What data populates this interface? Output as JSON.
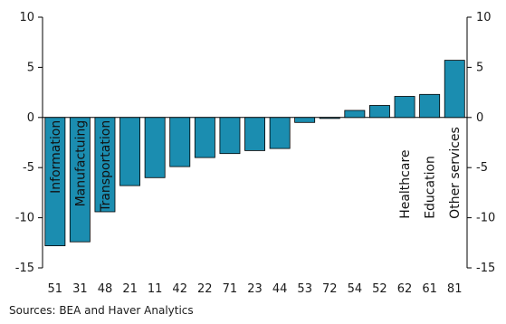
{
  "chart_data": {
    "type": "bar",
    "categories": [
      "51",
      "31",
      "48",
      "21",
      "11",
      "42",
      "22",
      "71",
      "23",
      "44",
      "53",
      "72",
      "54",
      "52",
      "62",
      "61",
      "81"
    ],
    "values": [
      -12.8,
      -12.4,
      -9.4,
      -6.8,
      -6.0,
      -4.9,
      -4.0,
      -3.6,
      -3.3,
      -3.1,
      -0.5,
      -0.1,
      0.7,
      1.2,
      2.1,
      2.3,
      5.7
    ],
    "bar_annotations": [
      "Information",
      "Manufactuing",
      "Transportation",
      "",
      "",
      "",
      "",
      "",
      "",
      "",
      "",
      "",
      "",
      "",
      "Healthcare",
      "Education",
      "Other services"
    ],
    "ylim": [
      -15,
      10
    ],
    "yticks": [
      10,
      5,
      0,
      -5,
      -10,
      -15
    ],
    "secondary_axis": true,
    "grid": false,
    "bar_color": "#1b8db0",
    "bar_edge_color": "#000000",
    "title": "",
    "xlabel": "",
    "ylabel": ""
  },
  "source": "Sources: BEA and Haver Analytics"
}
